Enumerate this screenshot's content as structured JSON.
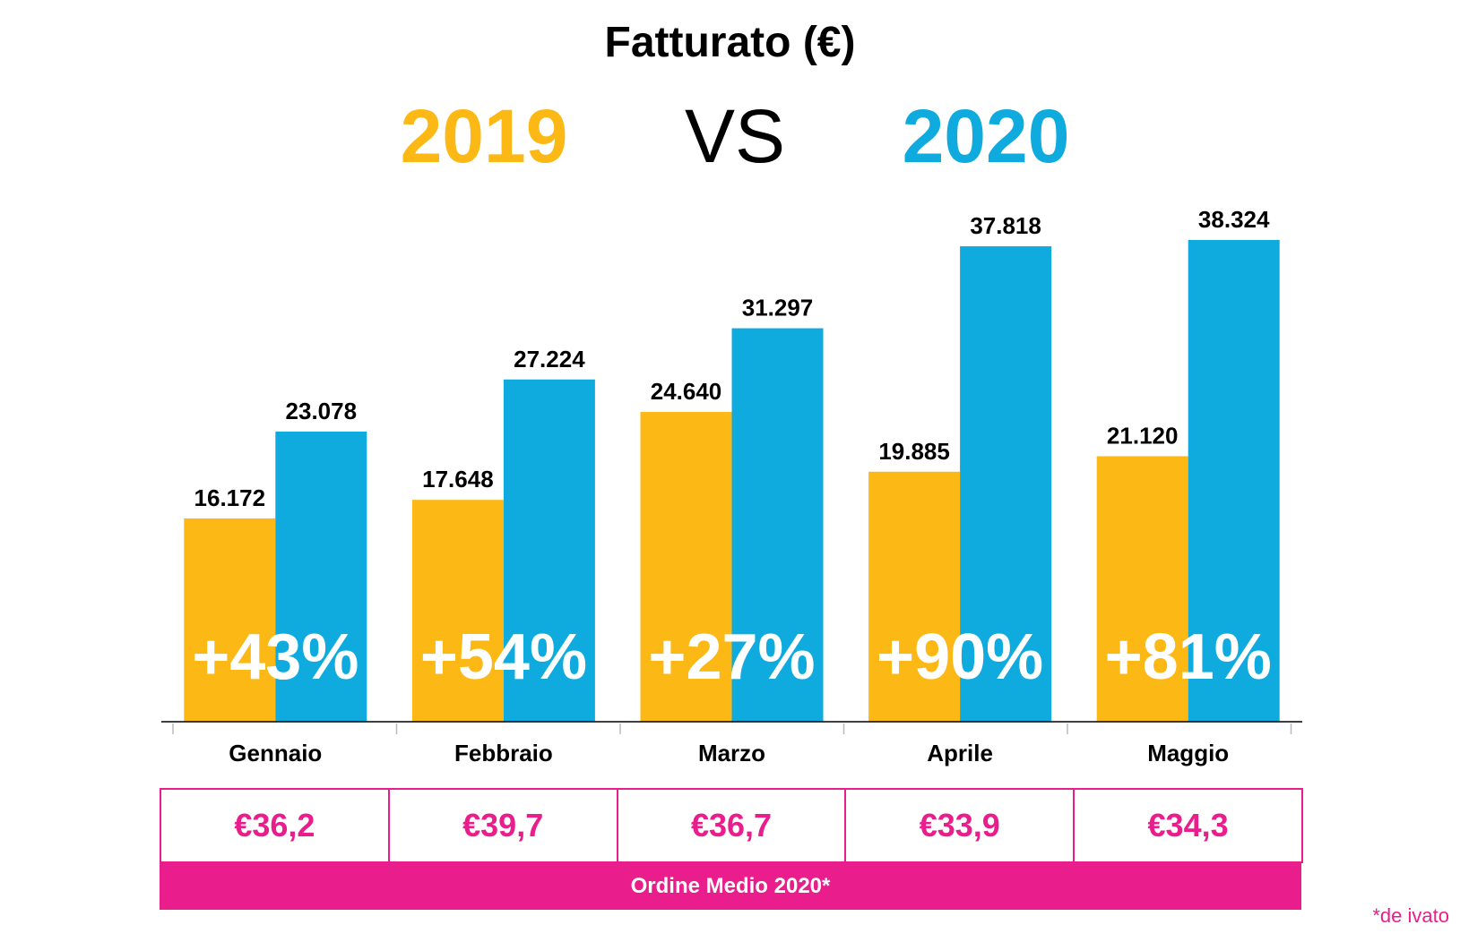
{
  "title": "Fatturato (€)",
  "year_a": "2019",
  "vs": "VS",
  "year_b": "2020",
  "colors": {
    "year_a": "#fcb814",
    "year_b": "#0fabdf",
    "accent": "#e91e8c"
  },
  "chart_data": {
    "type": "bar",
    "categories": [
      "Gennaio",
      "Febbraio",
      "Marzo",
      "Aprile",
      "Maggio"
    ],
    "series": [
      {
        "name": "2019",
        "values": [
          16172,
          17648,
          24640,
          19885,
          21120
        ],
        "labels": [
          "16.172",
          "17.648",
          "24.640",
          "19.885",
          "21.120"
        ]
      },
      {
        "name": "2020",
        "values": [
          23078,
          27224,
          31297,
          37818,
          38324
        ],
        "labels": [
          "23.078",
          "27.224",
          "31.297",
          "37.818",
          "38.324"
        ]
      }
    ],
    "growth_labels": [
      "+43%",
      "+54%",
      "+27%",
      "+90%",
      "+81%"
    ],
    "ylim": [
      0,
      40000
    ],
    "grid": false
  },
  "avg_order": {
    "values": [
      "€36,2",
      "€39,7",
      "€36,7",
      "€33,9",
      "€34,3"
    ],
    "label": "Ordine Medio 2020*"
  },
  "footnote": "*de ivato"
}
